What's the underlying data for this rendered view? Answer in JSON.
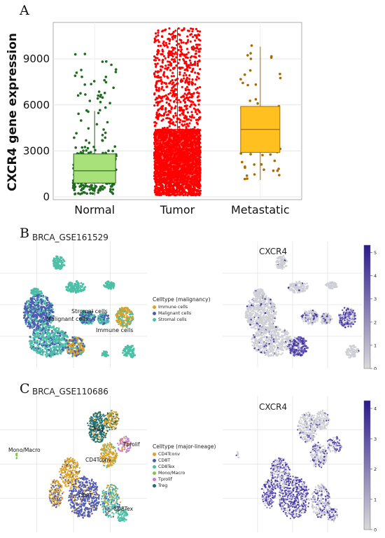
{
  "panels": {
    "a": {
      "letter": "A"
    },
    "b": {
      "letter": "B",
      "title": "BRCA_GSE161529",
      "legend_title": "Celltype (malignancy)",
      "legend_items": [
        {
          "label": "Immune cells",
          "color": "#dba227"
        },
        {
          "label": "Malignant cells",
          "color": "#4f5bb2"
        },
        {
          "label": "Stromal cells",
          "color": "#4cbfa6"
        }
      ],
      "annotations": [
        "Stromal cells",
        "Malignant cells",
        "Immune cells"
      ],
      "feature_title": "CXCR4",
      "colorbar_ticks": [
        "5",
        "4",
        "3",
        "2",
        "1",
        "0"
      ]
    },
    "c": {
      "letter": "C",
      "title": "BRCA_GSE110686",
      "legend_title": "Celltype (major-lineage)",
      "legend_items": [
        {
          "label": "CD4Tconv",
          "color": "#dba227"
        },
        {
          "label": "CD8T",
          "color": "#4f5bb2"
        },
        {
          "label": "CD8Tex",
          "color": "#4cbfa6"
        },
        {
          "label": "Mono/Macro",
          "color": "#8bc34a"
        },
        {
          "label": "Tprolif",
          "color": "#c77bd0"
        },
        {
          "label": "Treg",
          "color": "#1d6e74"
        }
      ],
      "annotations": [
        "Treg",
        "Tprolif",
        "Mono/Macro",
        "CD4Tconv",
        "CD8T",
        "CD8Tex"
      ],
      "feature_title": "CXCR4",
      "colorbar_ticks": [
        "4",
        "3",
        "2",
        "1",
        "0"
      ]
    }
  },
  "chart_data": [
    {
      "type": "box",
      "ylabel": "CXCR4 gene expression",
      "ylim": [
        0,
        11200
      ],
      "yticks": [
        0,
        3000,
        6000,
        9000
      ],
      "categories": [
        "Normal",
        "Tumor",
        "Metastatic"
      ],
      "boxes": [
        {
          "name": "Normal",
          "q1": 900,
          "median": 1700,
          "q3": 2800,
          "whisker_low": 100,
          "whisker_high": 5600,
          "point_color": "#1f6b1f",
          "box_color": "#a8e07a",
          "points_max": 9800
        },
        {
          "name": "Tumor",
          "q1": 900,
          "median": 2400,
          "q3": 4400,
          "whisker_low": 100,
          "whisker_high": 11000,
          "point_color": "#ff0000",
          "box_color": "#ff4a4a",
          "points_max": 11000
        },
        {
          "name": "Metastatic",
          "q1": 2900,
          "median": 4400,
          "q3": 5900,
          "whisker_low": 1100,
          "whisker_high": 9800,
          "point_color": "#a86b00",
          "box_color": "#ffc020",
          "points_max": 9900
        }
      ],
      "grid": true
    },
    {
      "type": "scatter",
      "title": "BRCA_GSE161529",
      "series": [
        "Immune cells",
        "Malignant cells",
        "Stromal cells"
      ]
    },
    {
      "type": "scatter",
      "title": "CXCR4",
      "colorbar_range": [
        0,
        5.5
      ]
    },
    {
      "type": "scatter",
      "title": "BRCA_GSE110686",
      "series": [
        "CD4Tconv",
        "CD8T",
        "CD8Tex",
        "Mono/Macro",
        "Tprolif",
        "Treg"
      ]
    },
    {
      "type": "scatter",
      "title": "CXCR4",
      "colorbar_range": [
        0,
        4.8
      ]
    }
  ]
}
